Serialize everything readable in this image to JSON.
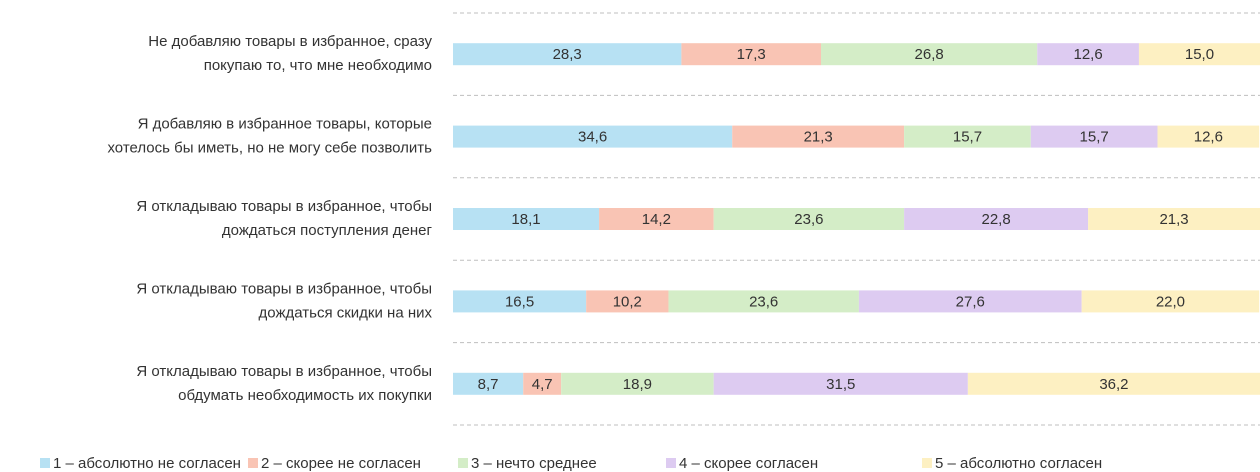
{
  "chart_data": {
    "type": "stacked-bar-horizontal",
    "categories": [
      [
        "Не добавляю товары в избранное, сразу",
        "покупаю то, что мне необходимо"
      ],
      [
        "Я добавляю в избранное товары, которые",
        "хотелось бы иметь, но не могу себе позволить"
      ],
      [
        "Я откладываю товары в избранное, чтобы",
        "дождаться поступления денег"
      ],
      [
        "Я откладываю товары в избранное, чтобы",
        "дождаться скидки на них"
      ],
      [
        "Я откладываю товары в избранное, чтобы",
        "обдумать необходимость их покупки"
      ]
    ],
    "series": [
      {
        "name": "1 – абсолютно не согласен",
        "color": "#b7e1f3",
        "values": [
          28.3,
          34.6,
          18.1,
          16.5,
          8.7
        ],
        "value_labels": [
          "28,3",
          "34,6",
          "18,1",
          "16,5",
          "8,7"
        ]
      },
      {
        "name": "2 – скорее не согласен",
        "color": "#f9c4b4",
        "values": [
          17.3,
          21.3,
          14.2,
          10.2,
          4.7
        ],
        "value_labels": [
          "17,3",
          "21,3",
          "14,2",
          "10,2",
          "4,7"
        ]
      },
      {
        "name": "3 – нечто среднее",
        "color": "#d4edc7",
        "values": [
          26.8,
          15.7,
          23.6,
          23.6,
          18.9
        ],
        "value_labels": [
          "26,8",
          "15,7",
          "23,6",
          "23,6",
          "18,9"
        ]
      },
      {
        "name": "4 – скорее согласен",
        "color": "#ddcbf1",
        "values": [
          12.6,
          15.7,
          22.8,
          27.6,
          31.5
        ],
        "value_labels": [
          "12,6",
          "15,7",
          "22,8",
          "27,6",
          "31,5"
        ]
      },
      {
        "name": "5 – абсолютно согласен",
        "color": "#fdf0c2",
        "values": [
          15.0,
          12.6,
          21.3,
          22.0,
          36.2
        ],
        "value_labels": [
          "15,0",
          "12,6",
          "21,3",
          "22,0",
          "36,2"
        ]
      }
    ],
    "xlim": [
      0,
      100
    ],
    "legend": "bottom"
  }
}
